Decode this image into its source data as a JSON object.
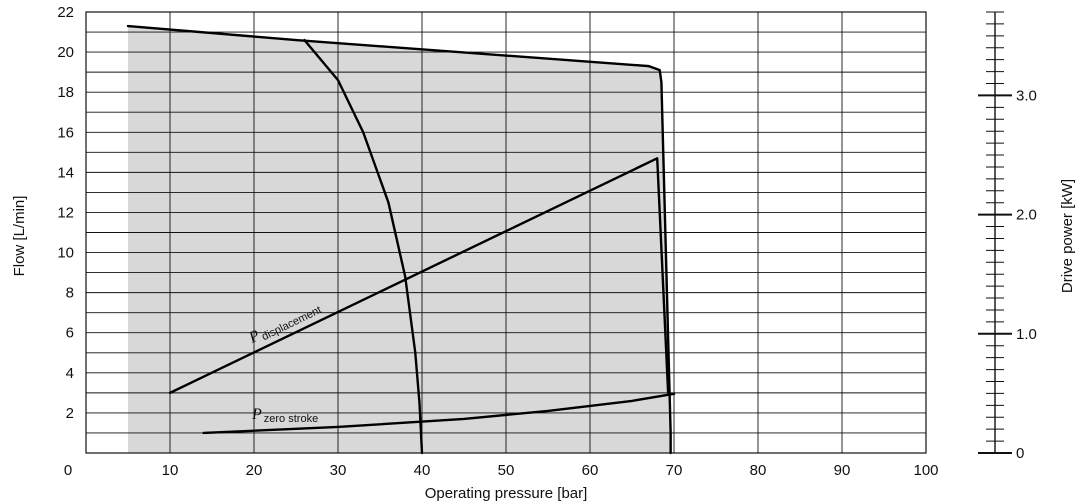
{
  "chart_data": {
    "type": "line",
    "title": "",
    "xlabel": "Operating pressure [bar]",
    "ylabel": "Flow [L/min]",
    "y2label": "Drive power [kW]",
    "xlim": [
      0,
      100
    ],
    "ylim": [
      0,
      22
    ],
    "y2lim": [
      0,
      3.7
    ],
    "x_ticks": [
      0,
      10,
      20,
      30,
      40,
      50,
      60,
      70,
      80,
      90,
      100
    ],
    "y_ticks": [
      2,
      4,
      6,
      8,
      10,
      12,
      14,
      16,
      18,
      20,
      22
    ],
    "y2_ticks": [
      0,
      1.0,
      2.0,
      3.0
    ],
    "y2_tick_labels": [
      "0",
      "1.0",
      "2.0",
      "3.0"
    ],
    "grid": true,
    "shaded_region": {
      "x": [
        5,
        5,
        25,
        67,
        68.3,
        68.5,
        69.6,
        69.6
      ],
      "y": [
        0,
        21.3,
        20.6,
        19.3,
        19.1,
        18.5,
        1.0,
        0
      ]
    },
    "series": [
      {
        "name": "",
        "x": [
          5,
          25,
          67,
          68.3,
          68.5,
          69.6,
          69.6
        ],
        "y": [
          21.3,
          20.6,
          19.3,
          19.1,
          18.5,
          1.0,
          0
        ]
      },
      {
        "name": "",
        "x": [
          26,
          30,
          33,
          36,
          38,
          39.2,
          39.7,
          40
        ],
        "y": [
          20.6,
          18.6,
          16,
          12.5,
          8.8,
          5,
          2.5,
          0
        ]
      },
      {
        "name": "",
        "x": [
          10,
          68,
          69.3
        ],
        "y": [
          3.0,
          14.7,
          3.0
        ]
      },
      {
        "name": "",
        "x": [
          14,
          30,
          45,
          55,
          65,
          70
        ],
        "y": [
          1.0,
          1.3,
          1.7,
          2.1,
          2.6,
          2.95
        ]
      }
    ],
    "annotations": [
      {
        "base": "P",
        "sub": "displacement"
      },
      {
        "base": "P",
        "sub": "zero stroke"
      }
    ]
  }
}
